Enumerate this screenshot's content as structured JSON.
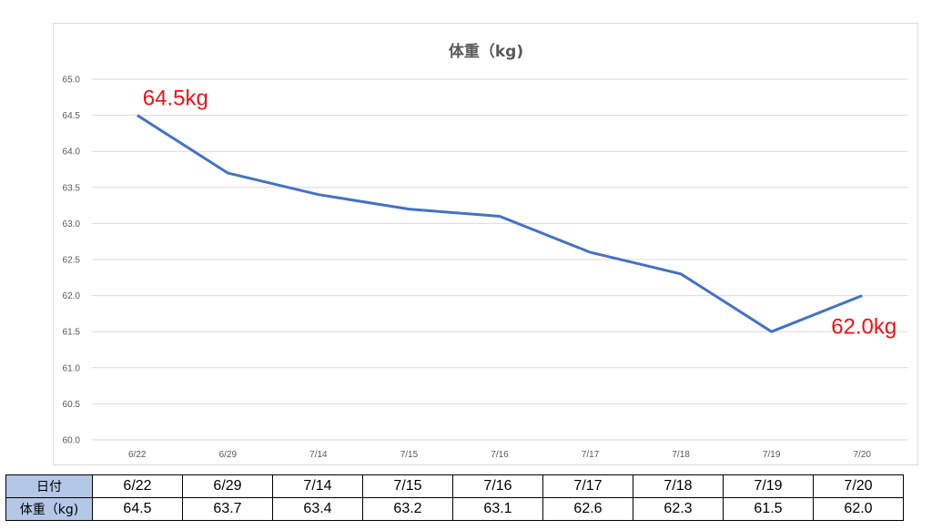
{
  "chart_data": {
    "type": "line",
    "title": "体重（kg)",
    "categories": [
      "6/22",
      "6/29",
      "7/14",
      "7/15",
      "7/16",
      "7/17",
      "7/18",
      "7/19",
      "7/20"
    ],
    "series": [
      {
        "values": [
          64.5,
          63.7,
          63.4,
          63.2,
          63.1,
          62.6,
          62.3,
          61.5,
          62.0
        ],
        "color": "#4472c4"
      }
    ],
    "ylim": [
      60.0,
      65.0
    ],
    "ytick_step": 0.5,
    "grid": true,
    "legend": "none",
    "annotations": [
      {
        "text": "64.5kg",
        "category": "6/22",
        "color": "#e8141b"
      },
      {
        "text": "62.0kg",
        "category": "7/20",
        "color": "#e8141b"
      }
    ]
  },
  "table": {
    "date_header": "日付",
    "weight_header": "体重（kg)",
    "dates": [
      "6/22",
      "6/29",
      "7/14",
      "7/15",
      "7/16",
      "7/17",
      "7/18",
      "7/19",
      "7/20"
    ],
    "weights": [
      "64.5",
      "63.7",
      "63.4",
      "63.2",
      "63.1",
      "62.6",
      "62.3",
      "61.5",
      "62.0"
    ]
  }
}
